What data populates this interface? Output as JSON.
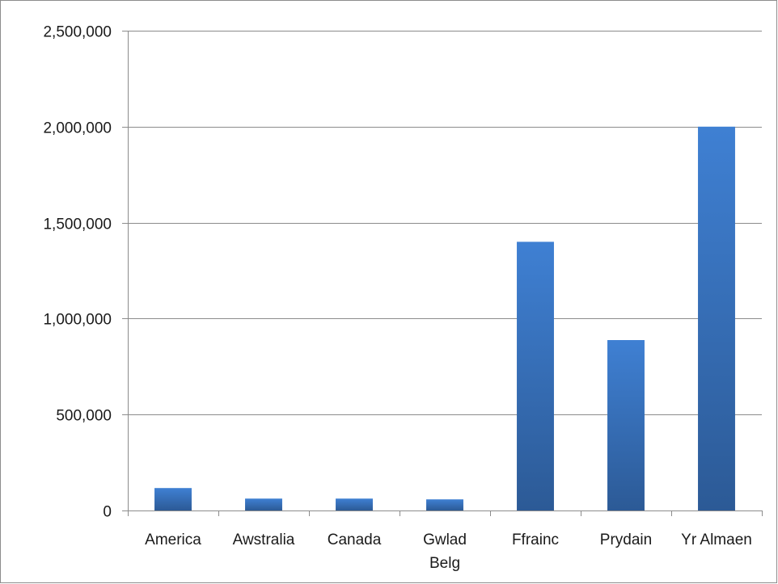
{
  "chart_data": {
    "type": "bar",
    "title": "",
    "xlabel": "",
    "ylabel": "",
    "categories": [
      "America",
      "Awstralia",
      "Canada",
      "Gwlad Belg",
      "Ffrainc",
      "Prydain",
      "Yr Almaen"
    ],
    "category_lines": [
      [
        "America"
      ],
      [
        "Awstralia"
      ],
      [
        "Canada"
      ],
      [
        "Gwlad",
        "Belg"
      ],
      [
        "Ffrainc"
      ],
      [
        "Prydain"
      ],
      [
        "Yr Almaen"
      ]
    ],
    "series": [
      {
        "values": [
          117000,
          62000,
          62000,
          58000,
          1400000,
          888000,
          2000000
        ]
      }
    ],
    "ylim": [
      0,
      2500000
    ],
    "yticks": [
      0,
      500000,
      1000000,
      1500000,
      2000000,
      2500000
    ],
    "ytick_labels": [
      "0",
      "500,000",
      "1,000,000",
      "1,500,000",
      "2,000,000",
      "2,500,000"
    ],
    "grid": true,
    "legend": "none",
    "colors": {
      "bar_light": "#3f80d3",
      "bar_dark": "#2c5a96",
      "grid": "#8c8c8c",
      "axis": "#8c8c8c"
    }
  }
}
